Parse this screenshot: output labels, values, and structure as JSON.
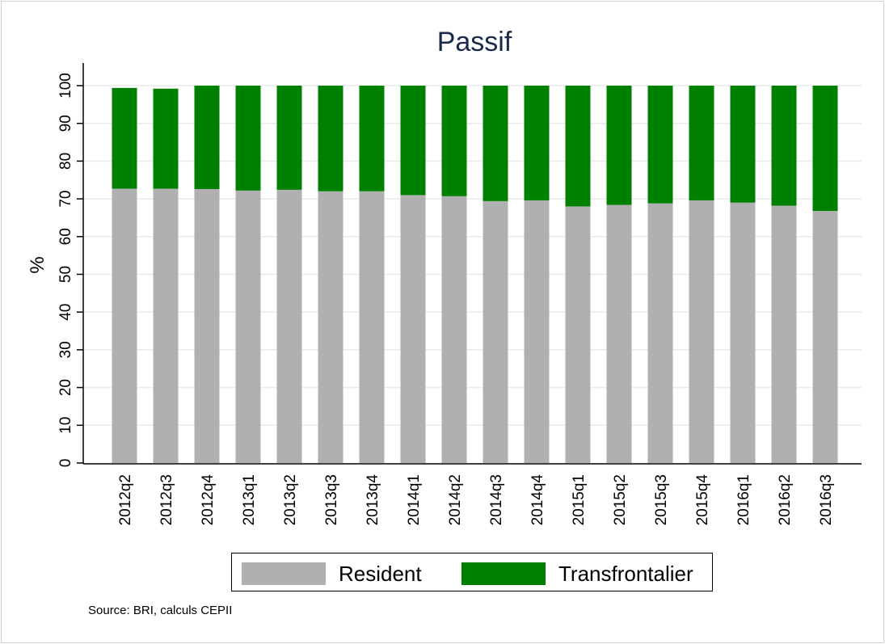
{
  "chart_data": {
    "type": "bar",
    "stacked": true,
    "title": "Passif",
    "xlabel": "",
    "ylabel": "%",
    "ylim": [
      0,
      106
    ],
    "yticks": [
      0,
      10,
      20,
      30,
      40,
      50,
      60,
      70,
      80,
      90,
      100
    ],
    "grid": true,
    "categories": [
      "2012q2",
      "2012q3",
      "2012q4",
      "2013q1",
      "2013q2",
      "2013q3",
      "2013q4",
      "2014q1",
      "2014q2",
      "2014q3",
      "2014q4",
      "2015q1",
      "2015q2",
      "2015q3",
      "2015q4",
      "2016q1",
      "2016q2",
      "2016q3"
    ],
    "series": [
      {
        "name": "Resident",
        "color": "#b0b0b0",
        "values": [
          72.7,
          72.7,
          72.6,
          72.2,
          72.4,
          72.0,
          72.0,
          71.0,
          70.7,
          69.4,
          69.6,
          68.0,
          68.4,
          68.8,
          69.6,
          69.0,
          68.2,
          66.8
        ]
      },
      {
        "name": "Transfrontalier",
        "color": "#008000",
        "values": [
          26.7,
          26.5,
          27.4,
          27.8,
          27.6,
          28.0,
          28.0,
          29.0,
          29.3,
          30.6,
          30.4,
          32.0,
          31.6,
          31.2,
          30.4,
          31.0,
          31.8,
          33.2
        ]
      }
    ],
    "legend_position": "bottom",
    "source": "Source: BRI, calculs CEPII"
  }
}
